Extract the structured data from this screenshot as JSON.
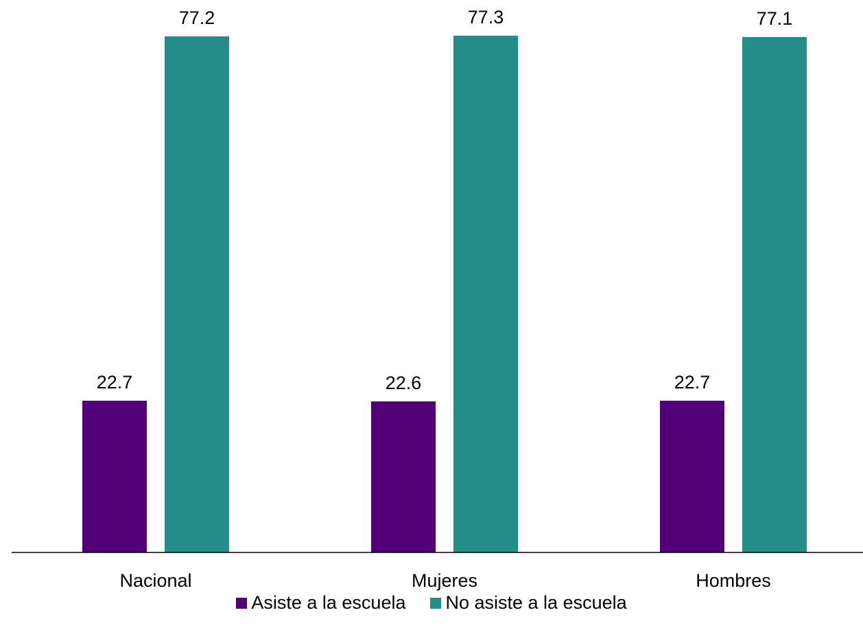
{
  "chart_data": {
    "type": "bar",
    "categories": [
      "Nacional",
      "Mujeres",
      "Hombres"
    ],
    "series": [
      {
        "name": "Asiste a la escuela",
        "values": [
          22.7,
          22.6,
          22.7
        ],
        "color": "#520077"
      },
      {
        "name": "No asiste a la escuela",
        "values": [
          77.2,
          77.3,
          77.1
        ],
        "color": "#248c89"
      }
    ],
    "data_labels": [
      "22.7",
      "22.6",
      "22.7",
      "77.2",
      "77.3",
      "77.1"
    ],
    "ylim": [
      0,
      80
    ],
    "grid": false,
    "legend_position": "bottom",
    "value_labels": true
  }
}
